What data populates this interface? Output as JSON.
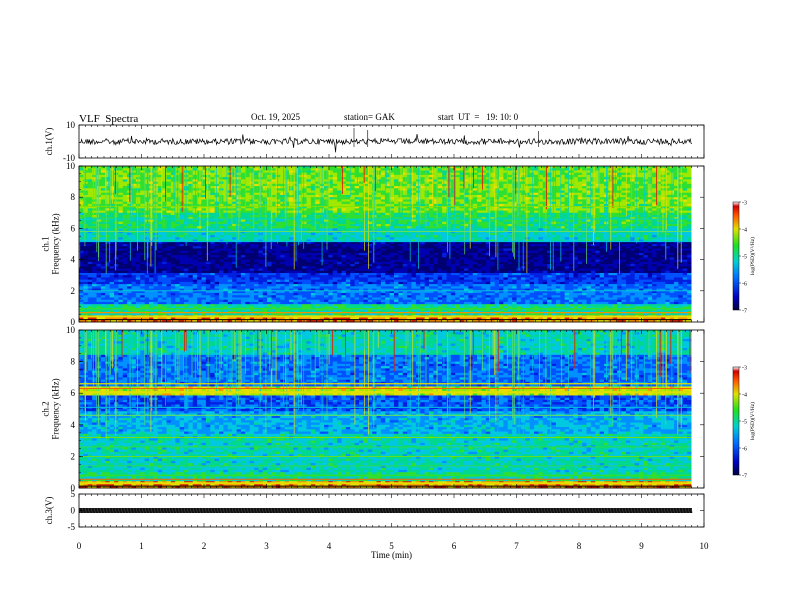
{
  "header": {
    "title": "VLF  Spectra",
    "date": "Oct. 19, 2025",
    "station": "station= GAK",
    "start": "start  UT  =   19: 10: 0"
  },
  "chart_data": [
    {
      "type": "line",
      "panel": "ch1-waveform",
      "ylabel": "ch.1(V)",
      "ylim": [
        -10,
        10
      ],
      "yticks": [
        10,
        -10
      ],
      "xlim": [
        0,
        10
      ],
      "series_color": "#000000"
    },
    {
      "type": "heatmap",
      "panel": "ch1-spectrogram",
      "ylabel": "ch.1\nFrequency  (kHz)",
      "ylim": [
        0,
        10
      ],
      "yticks": [
        0,
        2,
        4,
        6,
        8,
        10
      ],
      "xlim": [
        0,
        10
      ],
      "data_extent_min": 9.8,
      "colorbar": {
        "label": "log(PSD)(V²/Hz)",
        "range": [
          -7,
          -3
        ],
        "ticks": [
          -3,
          -4,
          -5,
          -6,
          -7
        ]
      }
    },
    {
      "type": "heatmap",
      "panel": "ch2-spectrogram",
      "ylabel": "ch.2\nFrequency  (kHz)",
      "ylim": [
        0,
        10
      ],
      "yticks": [
        0,
        2,
        4,
        6,
        8,
        10
      ],
      "xlim": [
        0,
        10
      ],
      "data_extent_min": 9.8,
      "colorbar": {
        "label": "log(PSD)(V²/Hz)",
        "range": [
          -7,
          -3
        ],
        "ticks": [
          -3,
          -4,
          -5,
          -6,
          -7
        ]
      }
    },
    {
      "type": "line",
      "panel": "ch3-waveform",
      "ylabel": "ch.3(V)",
      "ylim": [
        -5,
        5
      ],
      "yticks": [
        5,
        0,
        -5
      ],
      "xlim": [
        0,
        10
      ],
      "xticks": [
        0,
        1,
        2,
        3,
        4,
        5,
        6,
        7,
        8,
        9,
        10
      ],
      "xlabel": "Time  (min)",
      "series_color": "#000000"
    }
  ]
}
